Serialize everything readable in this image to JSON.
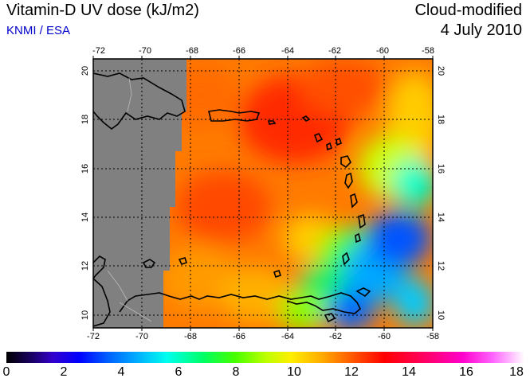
{
  "header": {
    "title": "Vitamin-D UV dose (kJ/m2)",
    "source": "KNMI / ESA",
    "mode": "Cloud-modified",
    "date": "4 July 2010"
  },
  "map": {
    "lon_ticks": [
      "-72",
      "-70",
      "-68",
      "-66",
      "-64",
      "-62",
      "-60",
      "-58"
    ],
    "lat_ticks": [
      "10",
      "12",
      "14",
      "16",
      "18",
      "20"
    ],
    "lon_range": [
      -72,
      -58
    ],
    "lat_range": [
      9.5,
      20.5
    ],
    "no_data_color": "#808080",
    "grid": "dotted"
  },
  "colorbar": {
    "labels": [
      "0",
      "2",
      "4",
      "6",
      "8",
      "10",
      "12",
      "14",
      "16",
      "18"
    ],
    "range": [
      0,
      18
    ]
  }
}
